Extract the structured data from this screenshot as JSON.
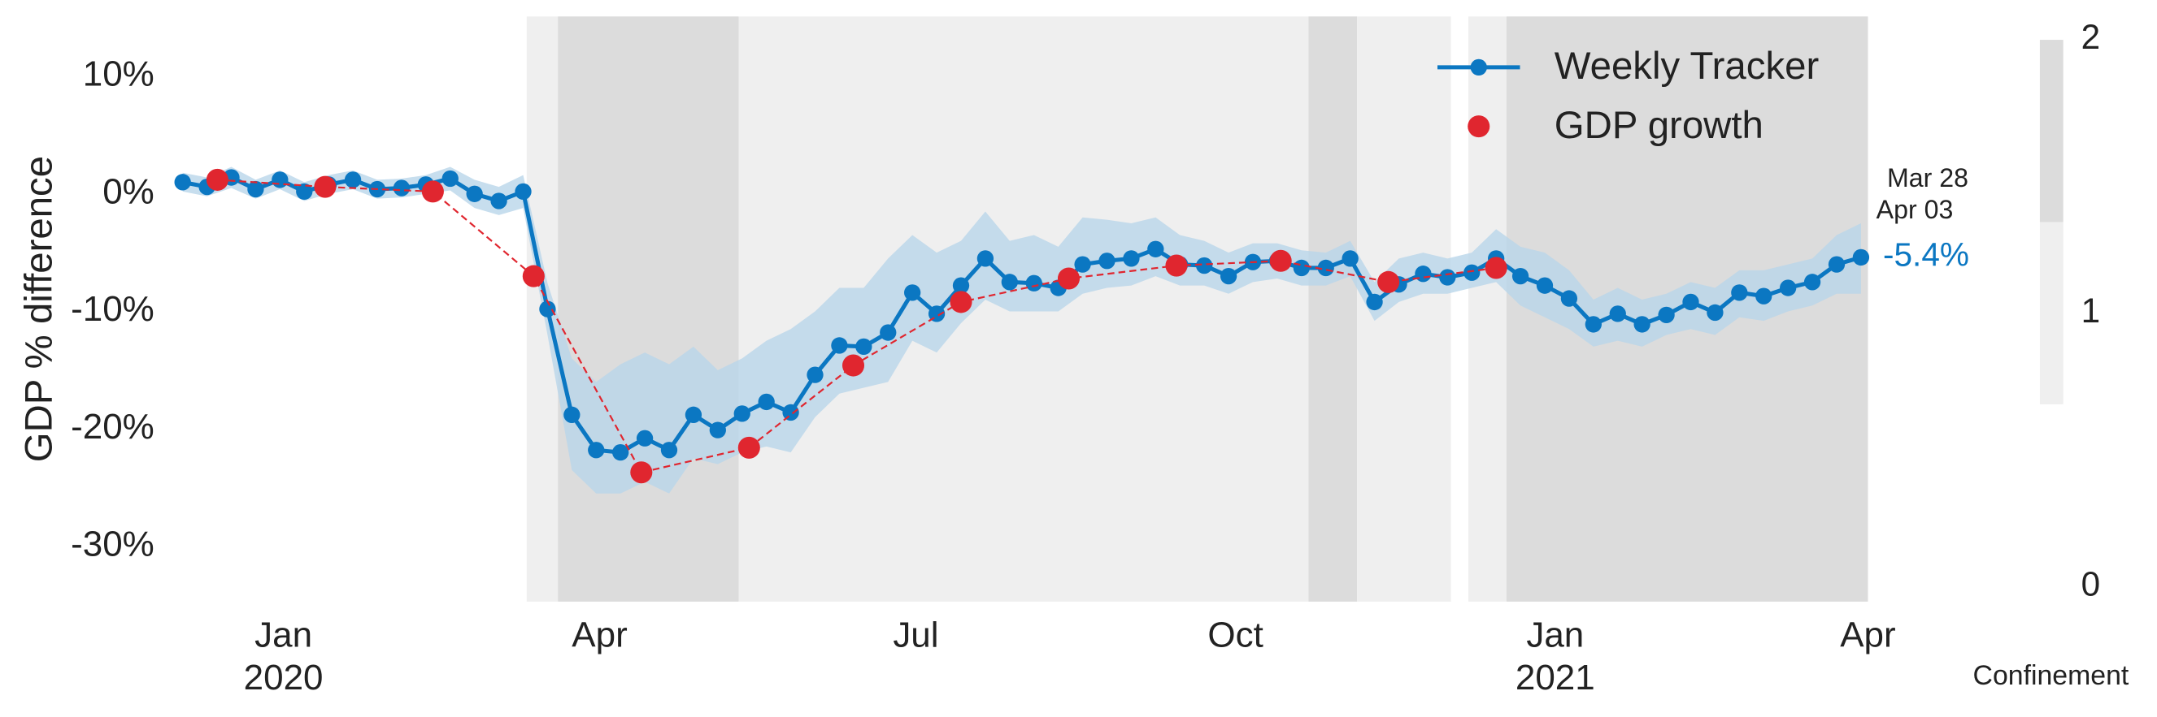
{
  "chart_data": {
    "type": "line",
    "y_label": "GDP % difference",
    "xlim": [
      -34,
      456
    ],
    "ylim": [
      -34.7,
      15.1
    ],
    "xticks": [
      {
        "value": 0,
        "label": "Jan"
      },
      {
        "value": 91,
        "label": "Apr"
      },
      {
        "value": 182,
        "label": "Jul"
      },
      {
        "value": 274,
        "label": "Oct"
      },
      {
        "value": 366,
        "label": "Jan"
      },
      {
        "value": 456,
        "label": "Apr"
      }
    ],
    "x_year_ticks": [
      {
        "value": 0,
        "label": "2020"
      },
      {
        "value": 366,
        "label": "2021"
      }
    ],
    "yticks": [
      {
        "value": 10,
        "label": "10%"
      },
      {
        "value": 0,
        "label": "0%"
      },
      {
        "value": -10,
        "label": "-10%"
      },
      {
        "value": -20,
        "label": "-20%"
      },
      {
        "value": -30,
        "label": "-30%"
      }
    ],
    "grid": false,
    "legend": "upper right",
    "x": [
      -29,
      -22,
      -15,
      -8,
      -1,
      6,
      13,
      20,
      27,
      34,
      41,
      48,
      55,
      62,
      69,
      76,
      83,
      90,
      97,
      104,
      111,
      118,
      125,
      132,
      139,
      146,
      153,
      160,
      167,
      174,
      181,
      188,
      195,
      202,
      209,
      216,
      223,
      230,
      237,
      244,
      251,
      258,
      265,
      272,
      279,
      286,
      293,
      300,
      307,
      314,
      321,
      328,
      335,
      342,
      349,
      356,
      363,
      370,
      377,
      384,
      391,
      398,
      405,
      412,
      419,
      426,
      433,
      440,
      447,
      454
    ],
    "series": [
      {
        "name": "Weekly Tracker",
        "color": "#0b77c2",
        "band_color": "#b9d6ea",
        "values": [
          1.0,
          0.6,
          1.4,
          0.4,
          1.2,
          0.2,
          0.8,
          1.2,
          0.4,
          0.5,
          0.8,
          1.3,
          0.0,
          -0.6,
          0.2,
          -9.8,
          -18.8,
          -21.8,
          -22.0,
          -20.8,
          -21.8,
          -18.8,
          -20.1,
          -18.7,
          -17.7,
          -18.6,
          -15.4,
          -12.9,
          -13.0,
          -11.8,
          -8.4,
          -10.2,
          -7.8,
          -5.5,
          -7.5,
          -7.6,
          -8.0,
          -6.0,
          -5.7,
          -5.5,
          -4.7,
          -6.0,
          -6.1,
          -7.0,
          -5.8,
          -5.7,
          -6.3,
          -6.3,
          -5.5,
          -9.2,
          -7.7,
          -6.8,
          -7.1,
          -6.7,
          -5.5,
          -7.0,
          -7.8,
          -8.9,
          -11.1,
          -10.2,
          -11.1,
          -10.3,
          -9.2,
          -10.1,
          -8.4,
          -8.7,
          -8.0,
          -7.5,
          -6.0,
          -5.4
        ],
        "value_labels": [
          null,
          null,
          null,
          null,
          null,
          null,
          null,
          null,
          null,
          null,
          null,
          null,
          null,
          null,
          null,
          null,
          null,
          null,
          null,
          null,
          null,
          null,
          null,
          null,
          null,
          null,
          null,
          null,
          null,
          null,
          null,
          null,
          null,
          null,
          null,
          null,
          null,
          null,
          null,
          null,
          null,
          null,
          null,
          null,
          null,
          null,
          null,
          null,
          null,
          null,
          null,
          null,
          null,
          null,
          null,
          null,
          null,
          null,
          null,
          null,
          null,
          null,
          null,
          null,
          null,
          null,
          null,
          null,
          null,
          "-5.4%"
        ],
        "band_lower": [
          0.2,
          -0.2,
          0.5,
          -0.4,
          0.4,
          -0.6,
          0.0,
          0.4,
          -0.4,
          -0.3,
          0.0,
          0.3,
          -1.2,
          -1.8,
          -1.2,
          -12.0,
          -23.5,
          -25.5,
          -25.5,
          -24.5,
          -25.5,
          -22.5,
          -23.0,
          -22.0,
          -21.5,
          -22.0,
          -19.0,
          -17.0,
          -16.5,
          -16.0,
          -12.5,
          -13.5,
          -11.0,
          -9.0,
          -10.0,
          -10.0,
          -10.0,
          -8.5,
          -8.0,
          -7.8,
          -7.0,
          -7.8,
          -7.8,
          -8.5,
          -7.5,
          -7.2,
          -7.8,
          -7.8,
          -7.0,
          -10.8,
          -9.2,
          -8.5,
          -8.5,
          -8.0,
          -7.5,
          -9.5,
          -10.5,
          -11.5,
          -13.0,
          -12.5,
          -13.0,
          -12.0,
          -11.5,
          -12.0,
          -10.5,
          -10.8,
          -10.0,
          -9.5,
          -8.5,
          -8.5
        ],
        "band_upper": [
          1.8,
          1.4,
          2.3,
          1.2,
          2.0,
          1.0,
          1.6,
          2.0,
          1.2,
          1.3,
          1.6,
          2.3,
          1.2,
          0.6,
          1.6,
          -7.6,
          -14.0,
          -16.0,
          -14.5,
          -13.5,
          -14.5,
          -13.0,
          -15.0,
          -14.0,
          -12.5,
          -11.5,
          -10.0,
          -8.0,
          -8.0,
          -5.5,
          -3.5,
          -5.0,
          -4.0,
          -1.5,
          -4.0,
          -3.5,
          -4.5,
          -2.0,
          -2.2,
          -2.5,
          -2.0,
          -3.5,
          -4.0,
          -5.0,
          -4.2,
          -4.2,
          -4.8,
          -5.0,
          -4.0,
          -7.5,
          -5.5,
          -5.0,
          -5.5,
          -5.0,
          -3.0,
          -4.5,
          -5.0,
          -6.5,
          -9.0,
          -8.0,
          -9.0,
          -8.5,
          -7.5,
          -8.0,
          -6.5,
          -6.5,
          -6.0,
          -5.5,
          -3.5,
          -2.5
        ]
      },
      {
        "name": "GDP growth",
        "color": "#e0262f",
        "line_style": "dashed",
        "x": [
          -19,
          12,
          43,
          72,
          103,
          134,
          164,
          195,
          226,
          257,
          287,
          318,
          349
        ],
        "values": [
          1.2,
          0.6,
          0.2,
          -7.0,
          -23.7,
          -21.6,
          -14.6,
          -9.2,
          -7.2,
          -6.1,
          -5.7,
          -7.5,
          -6.3
        ]
      }
    ],
    "annotations": [
      {
        "text": "Mar 28"
      },
      {
        "text": "Apr 03"
      }
    ],
    "confinement": {
      "label": "Confinement",
      "clim": [
        0,
        2
      ],
      "ticks": [
        0,
        1,
        2
      ],
      "colors": [
        "#ffffff",
        "#efefef",
        "#dcdcdc"
      ],
      "periods": [
        {
          "start": 70,
          "end": 79,
          "level": 1
        },
        {
          "start": 79,
          "end": 131,
          "level": 2
        },
        {
          "start": 131,
          "end": 295,
          "level": 1
        },
        {
          "start": 295,
          "end": 309,
          "level": 2
        },
        {
          "start": 309,
          "end": 336,
          "level": 1
        },
        {
          "start": 341,
          "end": 352,
          "level": 1
        },
        {
          "start": 352,
          "end": 456,
          "level": 2
        }
      ]
    }
  }
}
